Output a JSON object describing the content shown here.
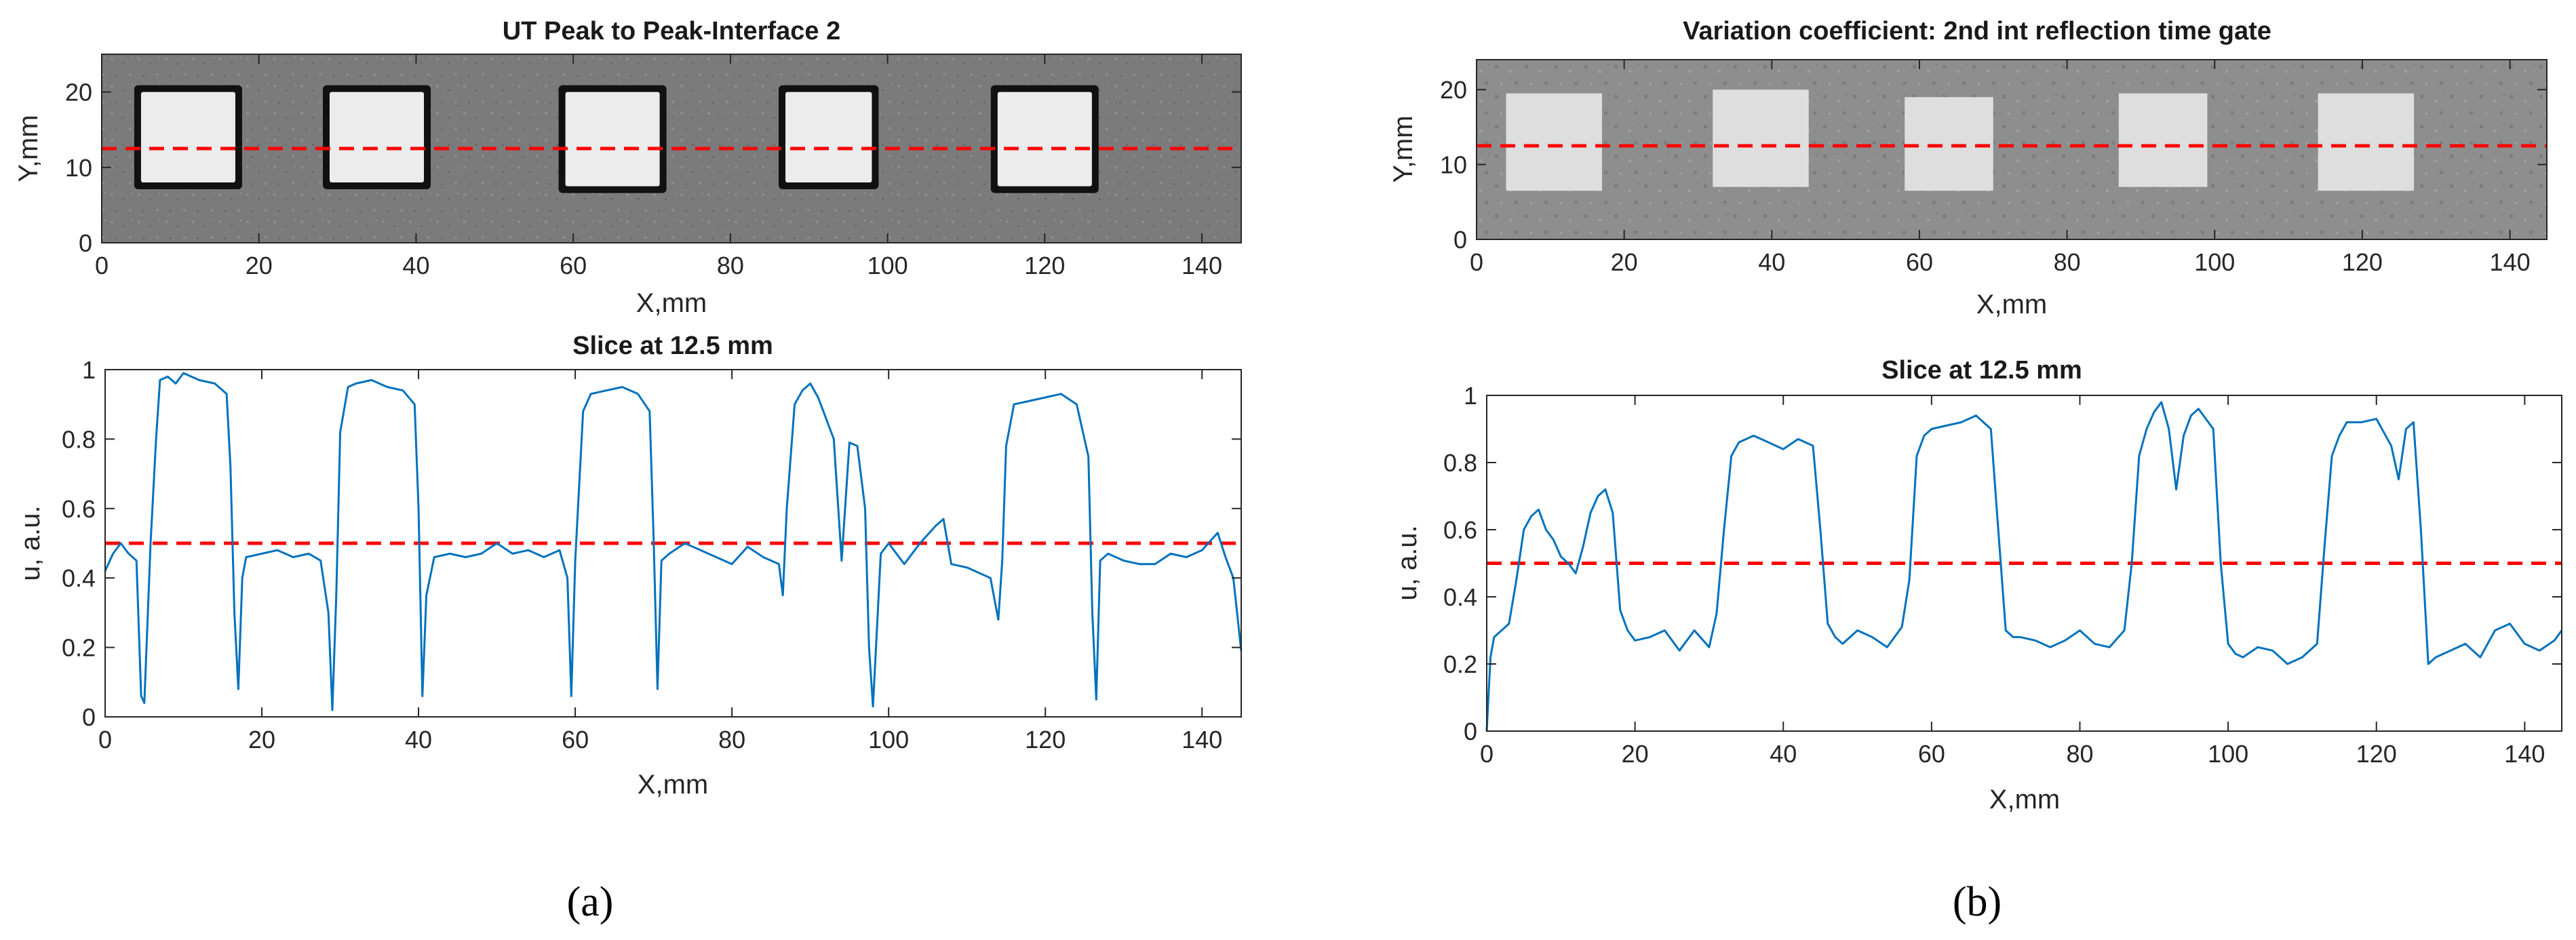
{
  "figure": {
    "panel_a_label": "(a)",
    "panel_b_label": "(b)"
  },
  "colors": {
    "signal": "#0072BD",
    "threshold": "#FF0000",
    "frame": "#262626",
    "text": "#262626"
  },
  "chart_data": [
    {
      "id": "a-map",
      "panel": "a",
      "type": "heatmap",
      "title": "UT Peak to Peak-Interface 2",
      "xlabel": "X,mm",
      "ylabel": "Y,mm",
      "xlim": [
        0,
        145
      ],
      "ylim": [
        0,
        25
      ],
      "xticks": [
        0,
        20,
        40,
        60,
        80,
        100,
        120,
        140
      ],
      "yticks": [
        0,
        10,
        20
      ],
      "colormap": "gray",
      "slice_y": 12.5,
      "squares": [
        {
          "x0": 5,
          "x1": 17,
          "y0": 8,
          "y1": 20
        },
        {
          "x0": 29,
          "x1": 41,
          "y0": 8,
          "y1": 20
        },
        {
          "x0": 59,
          "x1": 71,
          "y0": 7.5,
          "y1": 20
        },
        {
          "x0": 87,
          "x1": 98,
          "y0": 8,
          "y1": 20
        },
        {
          "x0": 114,
          "x1": 126,
          "y0": 7.5,
          "y1": 20
        }
      ]
    },
    {
      "id": "a-slice",
      "panel": "a",
      "type": "line",
      "title": "Slice at 12.5 mm",
      "xlabel": "X,mm",
      "ylabel": "u, a.u.",
      "xlim": [
        0,
        145
      ],
      "ylim": [
        0,
        1
      ],
      "xticks": [
        0,
        20,
        40,
        60,
        80,
        100,
        120,
        140
      ],
      "yticks": [
        0,
        0.2,
        0.4,
        0.6,
        0.8,
        1
      ],
      "threshold": 0.5,
      "series": [
        {
          "name": "slice",
          "x": [
            0,
            1,
            2,
            3,
            4,
            4.6,
            5,
            5.8,
            6.5,
            7,
            8,
            9,
            10,
            12,
            14,
            15.5,
            16,
            16.5,
            17,
            17.5,
            18,
            20,
            22,
            24,
            26,
            27.5,
            28.5,
            29,
            29.5,
            30,
            31,
            32,
            34,
            36,
            38,
            39.5,
            40,
            40.5,
            41,
            42,
            44,
            46,
            48,
            50,
            52,
            54,
            56,
            58,
            59,
            59.5,
            60,
            61,
            62,
            64,
            66,
            68,
            69.5,
            70,
            70.5,
            71,
            72,
            74,
            76,
            78,
            80,
            82,
            84,
            86,
            86.5,
            87,
            88,
            89,
            90,
            91,
            92,
            93,
            94,
            95,
            96,
            97,
            97.5,
            98,
            99,
            100,
            102,
            104,
            106,
            107,
            108,
            110,
            112,
            113,
            114,
            114.5,
            115,
            116,
            118,
            120,
            122,
            124,
            125.5,
            126,
            126.5,
            127,
            128,
            130,
            132,
            134,
            136,
            138,
            140,
            142,
            143,
            144,
            145
          ],
          "values": [
            0.42,
            0.47,
            0.5,
            0.47,
            0.45,
            0.06,
            0.04,
            0.5,
            0.8,
            0.97,
            0.98,
            0.96,
            0.99,
            0.97,
            0.96,
            0.93,
            0.72,
            0.3,
            0.08,
            0.4,
            0.46,
            0.47,
            0.48,
            0.46,
            0.47,
            0.45,
            0.3,
            0.02,
            0.35,
            0.82,
            0.95,
            0.96,
            0.97,
            0.95,
            0.94,
            0.9,
            0.6,
            0.06,
            0.35,
            0.46,
            0.47,
            0.46,
            0.47,
            0.5,
            0.47,
            0.48,
            0.46,
            0.48,
            0.4,
            0.06,
            0.45,
            0.88,
            0.93,
            0.94,
            0.95,
            0.93,
            0.88,
            0.52,
            0.08,
            0.45,
            0.47,
            0.5,
            0.48,
            0.46,
            0.44,
            0.49,
            0.46,
            0.44,
            0.35,
            0.6,
            0.9,
            0.94,
            0.96,
            0.92,
            0.86,
            0.8,
            0.45,
            0.79,
            0.78,
            0.6,
            0.2,
            0.03,
            0.47,
            0.5,
            0.44,
            0.5,
            0.55,
            0.57,
            0.44,
            0.43,
            0.41,
            0.4,
            0.28,
            0.45,
            0.78,
            0.9,
            0.91,
            0.92,
            0.93,
            0.9,
            0.75,
            0.3,
            0.05,
            0.45,
            0.47,
            0.45,
            0.44,
            0.44,
            0.47,
            0.46,
            0.48,
            0.53,
            0.46,
            0.4,
            0.19
          ]
        }
      ]
    },
    {
      "id": "b-map",
      "panel": "b",
      "type": "heatmap",
      "title": "Variation coefficient: 2nd int reflection time gate",
      "xlabel": "X,mm",
      "ylabel": "Y,mm",
      "xlim": [
        0,
        145
      ],
      "ylim": [
        0,
        24
      ],
      "xticks": [
        0,
        20,
        40,
        60,
        80,
        100,
        120,
        140
      ],
      "yticks": [
        0,
        10,
        20
      ],
      "colormap": "gray",
      "slice_y": 12.5,
      "squares": [
        {
          "x0": 4,
          "x1": 17,
          "y0": 6.5,
          "y1": 19.5
        },
        {
          "x0": 32,
          "x1": 45,
          "y0": 7,
          "y1": 20
        },
        {
          "x0": 58,
          "x1": 70,
          "y0": 6.5,
          "y1": 19
        },
        {
          "x0": 87,
          "x1": 99,
          "y0": 7,
          "y1": 19.5
        },
        {
          "x0": 114,
          "x1": 127,
          "y0": 6.5,
          "y1": 19.5
        }
      ]
    },
    {
      "id": "b-slice",
      "panel": "b",
      "type": "line",
      "title": "Slice at 12.5 mm",
      "xlabel": "X,mm",
      "ylabel": "u, a.u.",
      "xlim": [
        0,
        145
      ],
      "ylim": [
        0,
        1
      ],
      "xticks": [
        0,
        20,
        40,
        60,
        80,
        100,
        120,
        140
      ],
      "yticks": [
        0,
        0.2,
        0.4,
        0.6,
        0.8,
        1
      ],
      "threshold": 0.5,
      "series": [
        {
          "name": "slice",
          "x": [
            0,
            0.5,
            1,
            2,
            3,
            4,
            5,
            6,
            7,
            8,
            9,
            10,
            11,
            12,
            13,
            14,
            15,
            16,
            17,
            18,
            19,
            20,
            22,
            24,
            26,
            28,
            30,
            31,
            32,
            33,
            34,
            36,
            38,
            40,
            42,
            44,
            45,
            46,
            47,
            48,
            50,
            52,
            54,
            56,
            57,
            58,
            59,
            60,
            62,
            64,
            66,
            68,
            69,
            70,
            71,
            72,
            74,
            76,
            78,
            80,
            82,
            84,
            86,
            87,
            88,
            89,
            90,
            91,
            92,
            93,
            94,
            95,
            96,
            97,
            98,
            99,
            100,
            101,
            102,
            104,
            106,
            108,
            110,
            112,
            113,
            114,
            115,
            116,
            118,
            120,
            122,
            123,
            124,
            125,
            126,
            127,
            128,
            130,
            132,
            134,
            136,
            138,
            140,
            142,
            144,
            145
          ],
          "values": [
            0.0,
            0.22,
            0.28,
            0.3,
            0.32,
            0.45,
            0.6,
            0.64,
            0.66,
            0.6,
            0.57,
            0.52,
            0.5,
            0.47,
            0.55,
            0.65,
            0.7,
            0.72,
            0.65,
            0.36,
            0.3,
            0.27,
            0.28,
            0.3,
            0.24,
            0.3,
            0.25,
            0.35,
            0.6,
            0.82,
            0.86,
            0.88,
            0.86,
            0.84,
            0.87,
            0.85,
            0.6,
            0.32,
            0.28,
            0.26,
            0.3,
            0.28,
            0.25,
            0.31,
            0.45,
            0.82,
            0.88,
            0.9,
            0.91,
            0.92,
            0.94,
            0.9,
            0.6,
            0.3,
            0.28,
            0.28,
            0.27,
            0.25,
            0.27,
            0.3,
            0.26,
            0.25,
            0.3,
            0.5,
            0.82,
            0.9,
            0.95,
            0.98,
            0.9,
            0.72,
            0.88,
            0.94,
            0.96,
            0.93,
            0.9,
            0.5,
            0.26,
            0.23,
            0.22,
            0.25,
            0.24,
            0.2,
            0.22,
            0.26,
            0.55,
            0.82,
            0.88,
            0.92,
            0.92,
            0.93,
            0.85,
            0.75,
            0.9,
            0.92,
            0.6,
            0.2,
            0.22,
            0.24,
            0.26,
            0.22,
            0.3,
            0.32,
            0.26,
            0.24,
            0.27,
            0.3
          ]
        }
      ]
    }
  ]
}
